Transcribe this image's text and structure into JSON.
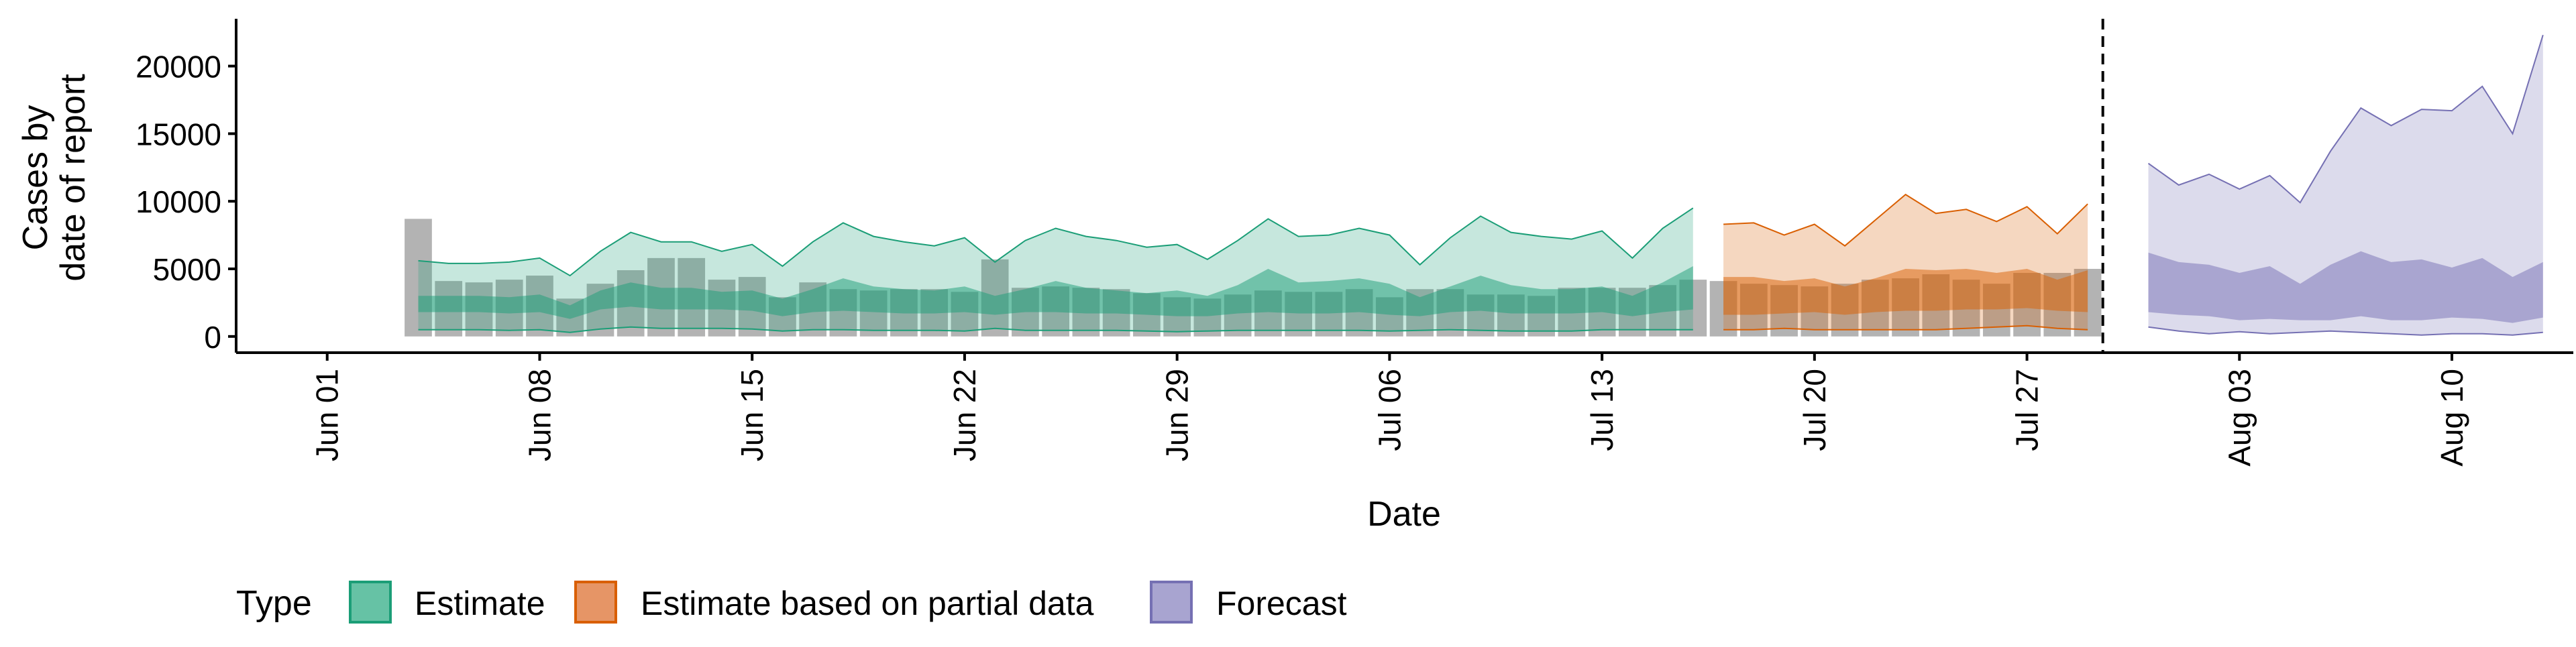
{
  "chart_data": {
    "type": "area",
    "xlabel": "Date",
    "ylabel_lines": [
      "Cases by",
      "date of report"
    ],
    "x_range": [
      "2020-05-29",
      "2020-08-14"
    ],
    "ylim": [
      -1200,
      23500
    ],
    "y_ticks": [
      0,
      5000,
      10000,
      15000,
      20000
    ],
    "y_tick_labels": [
      "0",
      "5000",
      "10000",
      "15000",
      "20000"
    ],
    "x_ticks": [
      "2020-06-01",
      "2020-06-08",
      "2020-06-15",
      "2020-06-22",
      "2020-06-29",
      "2020-07-06",
      "2020-07-13",
      "2020-07-20",
      "2020-07-27",
      "2020-08-03",
      "2020-08-10"
    ],
    "x_tick_labels": [
      "Jun 01",
      "Jun 08",
      "Jun 15",
      "Jun 22",
      "Jun 29",
      "Jul 06",
      "Jul 13",
      "Jul 20",
      "Jul 27",
      "Aug 03",
      "Aug 10"
    ],
    "grid": false,
    "legend_position": "bottom",
    "legend_title": "Type",
    "forecast_date": "2020-07-30",
    "colors": {
      "estimate": "#1b9e77",
      "partial": "#d95f02",
      "forecast": "#7570b3",
      "reported": "#b3b3b3"
    },
    "reported_cases": {
      "start_date": "2020-06-04",
      "values": [
        8700,
        4100,
        4000,
        4200,
        4500,
        2800,
        3900,
        4900,
        5800,
        5800,
        4200,
        4400,
        2900,
        4000,
        3500,
        3400,
        3500,
        3500,
        3300,
        5700,
        3600,
        3700,
        3600,
        3500,
        3200,
        2900,
        2800,
        3100,
        3400,
        3300,
        3300,
        3500,
        2900,
        3500,
        3500,
        3100,
        3100,
        3000,
        3600,
        3600,
        3600,
        3800,
        4200,
        4100,
        3900,
        3800,
        3700,
        3900,
        4200,
        4300,
        4600,
        4200,
        3900,
        4700,
        4700,
        5000
      ]
    },
    "series": [
      {
        "name": "Estimate",
        "start_date": "2020-06-04",
        "lower_90": [
          500,
          500,
          500,
          450,
          500,
          300,
          550,
          700,
          600,
          600,
          600,
          550,
          400,
          500,
          500,
          450,
          450,
          450,
          400,
          600,
          450,
          450,
          450,
          450,
          400,
          350,
          400,
          450,
          450,
          450,
          450,
          450,
          400,
          450,
          500,
          450,
          400,
          400,
          400,
          500,
          500,
          500,
          500
        ],
        "upper_90": [
          5600,
          5400,
          5400,
          5500,
          5800,
          4500,
          6300,
          7700,
          7000,
          7000,
          6300,
          6800,
          5200,
          7000,
          8400,
          7400,
          7000,
          6700,
          7300,
          5500,
          7100,
          8000,
          7400,
          7100,
          6600,
          6800,
          5700,
          7100,
          8700,
          7400,
          7500,
          8000,
          7500,
          5300,
          7300,
          8900,
          7700,
          7400,
          7200,
          7800,
          5800,
          8000,
          9500
        ],
        "lower_50": [
          1800,
          1800,
          1800,
          1700,
          1800,
          1300,
          2000,
          2200,
          2000,
          2000,
          2000,
          1900,
          1500,
          1800,
          1900,
          1800,
          1700,
          1700,
          1800,
          1600,
          1800,
          1800,
          1700,
          1700,
          1600,
          1500,
          1500,
          1700,
          1800,
          1700,
          1700,
          1800,
          1600,
          1500,
          1800,
          1900,
          1700,
          1700,
          1700,
          1800,
          1500,
          1800,
          2000
        ],
        "upper_50": [
          3000,
          3000,
          3000,
          2900,
          3100,
          2300,
          3400,
          4000,
          3600,
          3600,
          3300,
          3400,
          2800,
          3500,
          4300,
          3700,
          3500,
          3400,
          3700,
          3000,
          3500,
          4100,
          3600,
          3400,
          3200,
          3400,
          3000,
          3800,
          5000,
          4000,
          4100,
          4300,
          3900,
          2900,
          3700,
          4500,
          3800,
          3500,
          3500,
          3700,
          3000,
          4000,
          5200
        ]
      },
      {
        "name": "Estimate based on partial data",
        "start_date": "2020-07-17",
        "lower_90": [
          500,
          500,
          600,
          500,
          500,
          500,
          500,
          500,
          600,
          700,
          800,
          600,
          500
        ],
        "upper_90": [
          8300,
          8400,
          7500,
          8300,
          6700,
          8600,
          10500,
          9100,
          9400,
          8500,
          9600,
          7600,
          9800
        ],
        "lower_50": [
          1600,
          1600,
          1700,
          1800,
          1600,
          1800,
          1900,
          1900,
          2000,
          2000,
          2100,
          1900,
          1800
        ],
        "upper_50": [
          4400,
          4400,
          4100,
          4300,
          3700,
          4300,
          5000,
          4900,
          5000,
          4700,
          5000,
          4200,
          4900
        ]
      },
      {
        "name": "Forecast",
        "start_date": "2020-07-31",
        "lower_90": [
          700,
          400,
          200,
          350,
          200,
          300,
          400,
          300,
          200,
          100,
          200,
          200,
          100,
          300
        ],
        "upper_90": [
          12800,
          11200,
          12000,
          10900,
          11900,
          9900,
          13700,
          16900,
          15600,
          16800,
          16700,
          18500,
          15000,
          22300
        ],
        "lower_50": [
          1800,
          1600,
          1500,
          1200,
          1300,
          1200,
          1200,
          1500,
          1200,
          1200,
          1400,
          1300,
          1000,
          1400
        ],
        "upper_50": [
          6200,
          5500,
          5300,
          4700,
          5200,
          3900,
          5300,
          6300,
          5500,
          5700,
          5100,
          5800,
          4400,
          5500
        ]
      }
    ]
  }
}
